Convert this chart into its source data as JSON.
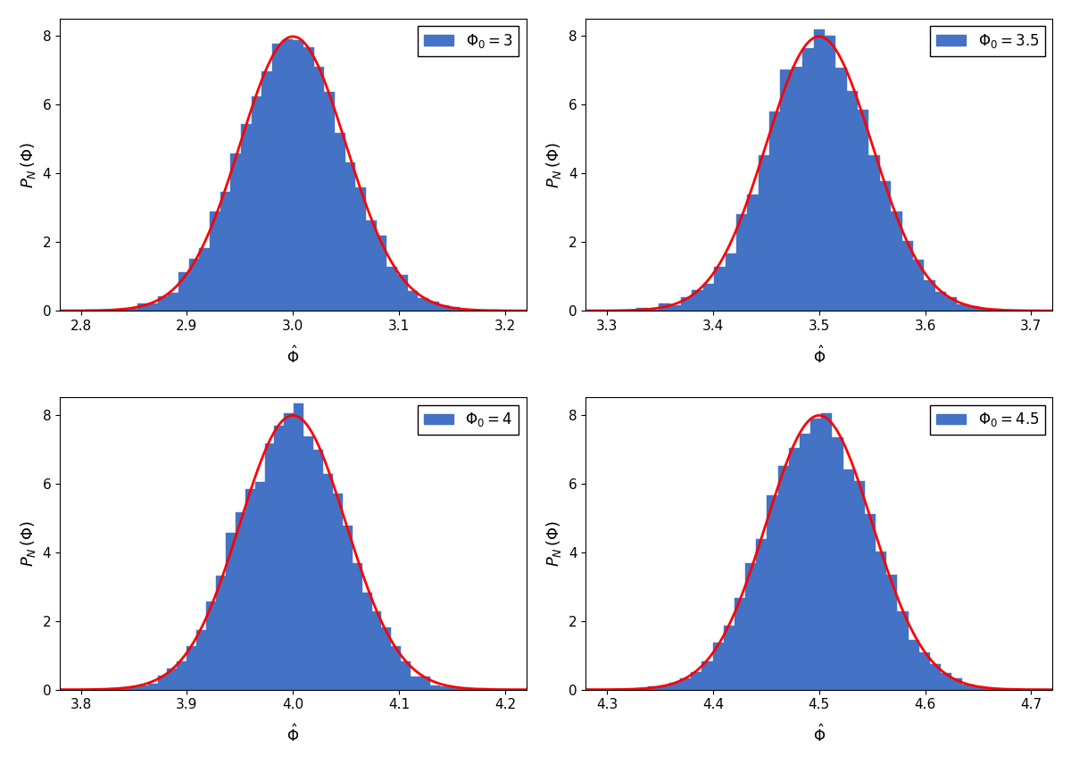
{
  "means": [
    3.0,
    3.5,
    4.0,
    4.5
  ],
  "sigma": 0.05,
  "n_samples": 10000,
  "n_bins": 40,
  "bar_color": "#4472C4",
  "line_color": "red",
  "ylabel": "$P_N\\,(\\Phi)$",
  "ylim": [
    0,
    8.5
  ],
  "yticks": [
    0,
    2,
    4,
    6,
    8
  ],
  "xlim_offsets": [
    -0.22,
    0.22
  ],
  "xtick_spacing": 0.1,
  "figsize": [
    12.0,
    8.56
  ],
  "dpi": 100,
  "legend_mean_labels": [
    "3",
    "3.5",
    "4",
    "4.5"
  ]
}
